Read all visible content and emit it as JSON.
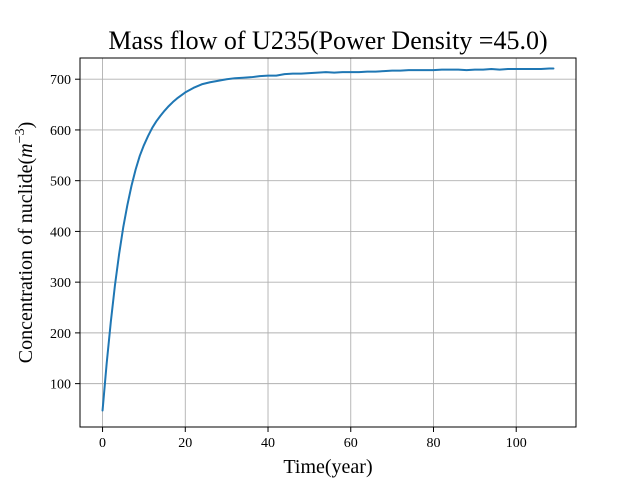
{
  "chart_data": {
    "type": "line",
    "title": "Mass flow of U235(Power Density =45.0)",
    "xlabel": "Time(year)",
    "ylabel": "Concentration of nuclide(",
    "ylabel_math": "m",
    "ylabel_exp": "−3",
    "ylabel_close": ")",
    "xlim": [
      -5.45,
      114.45
    ],
    "ylim": [
      14.5,
      741.8
    ],
    "xticks": [
      0,
      20,
      40,
      60,
      80,
      100
    ],
    "yticks": [
      100,
      200,
      300,
      400,
      500,
      600,
      700
    ],
    "grid": true,
    "color": "#1f77b4",
    "series": [
      {
        "x": [
          0,
          1,
          2,
          3,
          4,
          5,
          6,
          7,
          8,
          9,
          10,
          11,
          12,
          13,
          14,
          15,
          16,
          17,
          18,
          19,
          20,
          22,
          24,
          26,
          28,
          30,
          32,
          34,
          36,
          38,
          40,
          42,
          44,
          46,
          48,
          50,
          52,
          54,
          56,
          58,
          60,
          62,
          64,
          66,
          68,
          70,
          72,
          74,
          76,
          78,
          80,
          82,
          84,
          86,
          88,
          90,
          92,
          94,
          96,
          98,
          100,
          102,
          104,
          106,
          108,
          109
        ],
        "y": [
          47,
          140,
          222,
          294,
          355,
          408,
          452,
          490,
          522,
          549,
          570,
          588,
          604,
          617,
          628,
          638,
          647,
          655,
          662,
          668,
          674,
          683,
          690,
          694,
          697,
          700,
          702,
          703,
          704,
          706,
          707,
          707,
          710,
          711,
          711,
          712,
          713,
          714,
          713,
          714,
          714,
          714,
          715,
          715,
          716,
          717,
          717,
          718,
          718,
          718,
          718,
          719,
          719,
          719,
          718,
          719,
          719,
          720,
          719,
          720,
          720,
          720,
          720,
          720,
          721,
          721
        ]
      }
    ]
  }
}
